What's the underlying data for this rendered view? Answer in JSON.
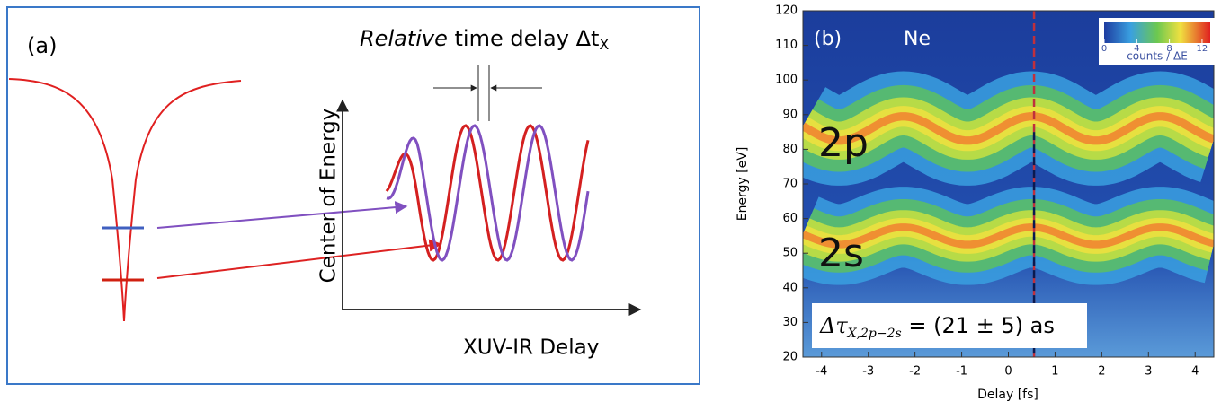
{
  "panel_a": {
    "label": "(a)",
    "title_italic": "Relative",
    "title_rest": " time delay Δt",
    "title_sub": "X",
    "y_label": "Center of Energy",
    "x_label": "XUV-IR Delay"
  },
  "panel_b": {
    "label": "(b)",
    "element": "Ne",
    "peak_2p": "2p",
    "peak_2s": "2s",
    "colorbar_label": "counts / ΔE",
    "colorbar_lim": [
      0,
      13
    ],
    "colorbar_ticks": [
      0,
      4,
      8,
      12
    ],
    "x_label": "Delay [fs]",
    "y_label": "Energy [eV]",
    "xlim": [
      -4.4,
      4.4
    ],
    "xticks": [
      -4,
      -3,
      -2,
      -1,
      0,
      1,
      2,
      3,
      4
    ],
    "ylim": [
      20,
      120
    ],
    "yticks": [
      20,
      30,
      40,
      50,
      60,
      70,
      80,
      90,
      100,
      110,
      120
    ],
    "dashed_line_delay": 0.55,
    "annotation_symbol": "Δτ",
    "annotation_sub": "X,2p−2s",
    "annotation_rest": " = (21 ± 5) as"
  }
}
